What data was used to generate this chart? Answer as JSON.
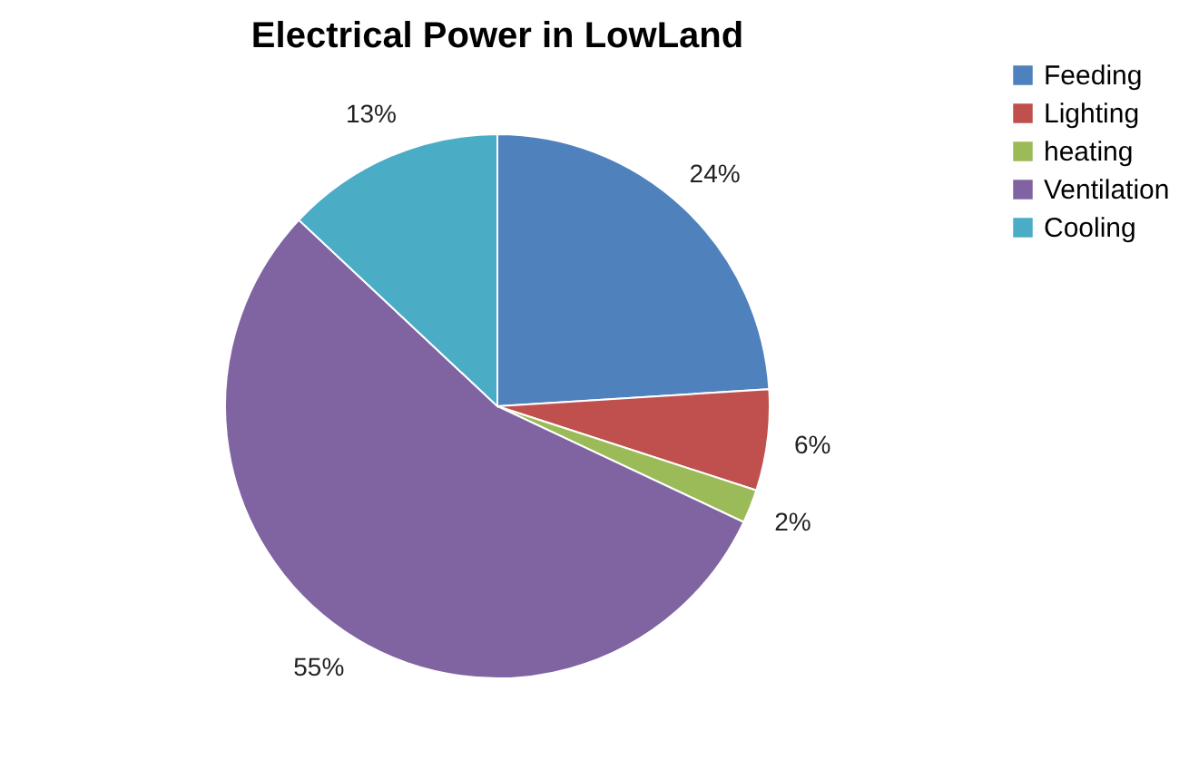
{
  "chart_data": {
    "type": "pie",
    "title": "Electrical Power in LowLand",
    "categories": [
      "Feeding",
      "Lighting",
      "heating",
      "Ventilation",
      "Cooling"
    ],
    "values": [
      24,
      6,
      2,
      55,
      13
    ],
    "colors": [
      "#4f81bd",
      "#c0504d",
      "#9bbb59",
      "#8064a2",
      "#4bacc6"
    ],
    "value_labels": [
      "24%",
      "6%",
      "2%",
      "55%",
      "13%"
    ],
    "legend": "right"
  }
}
